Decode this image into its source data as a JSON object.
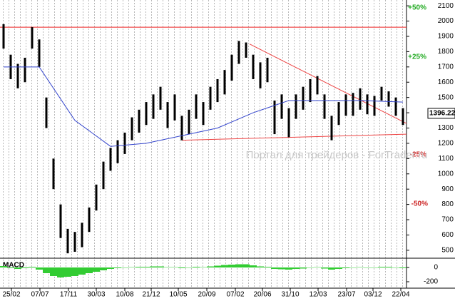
{
  "chart_data": {
    "type": "ohlc",
    "x": [
      0,
      1,
      2,
      3,
      4,
      5,
      6,
      7,
      8,
      9,
      10,
      11,
      12,
      13,
      14,
      15,
      16,
      17,
      18,
      19,
      20,
      21,
      22,
      23,
      24,
      25,
      26,
      27,
      28,
      29,
      30,
      31,
      32,
      33,
      34,
      35,
      36,
      37,
      38,
      39,
      40,
      41,
      42,
      43,
      44,
      45,
      46,
      47,
      48,
      49,
      50,
      51,
      52,
      53,
      54,
      55,
      56
    ],
    "high": [
      1980,
      1780,
      1720,
      1760,
      1960,
      1880,
      1500,
      1100,
      800,
      640,
      620,
      680,
      780,
      930,
      1080,
      1170,
      1220,
      1270,
      1370,
      1420,
      1470,
      1520,
      1570,
      1470,
      1520,
      1380,
      1420,
      1520,
      1470,
      1570,
      1620,
      1680,
      1780,
      1870,
      1860,
      1780,
      1730,
      1760,
      1480,
      1520,
      1430,
      1520,
      1570,
      1620,
      1640,
      1520,
      1380,
      1470,
      1520,
      1530,
      1560,
      1520,
      1510,
      1570,
      1540,
      1500,
      1430
    ],
    "low": [
      1820,
      1620,
      1560,
      1600,
      1820,
      1700,
      1300,
      900,
      580,
      480,
      490,
      520,
      620,
      760,
      900,
      1020,
      1070,
      1130,
      1220,
      1270,
      1320,
      1360,
      1420,
      1300,
      1350,
      1220,
      1260,
      1360,
      1320,
      1420,
      1470,
      1520,
      1610,
      1720,
      1760,
      1620,
      1560,
      1600,
      1260,
      1360,
      1240,
      1360,
      1420,
      1470,
      1520,
      1360,
      1220,
      1320,
      1380,
      1380,
      1420,
      1390,
      1380,
      1480,
      1440,
      1380,
      1320
    ],
    "color": "#000000",
    "ma": {
      "x": [
        0,
        5,
        10,
        15,
        20,
        25,
        30,
        35,
        40,
        45,
        50,
        56
      ],
      "values": [
        1700,
        1700,
        1350,
        1180,
        1200,
        1250,
        1300,
        1400,
        1480,
        1480,
        1480,
        1470
      ],
      "color": "#3344cc"
    },
    "lines": [
      {
        "x": [
          -0.5,
          56.5
        ],
        "values": [
          1960,
          1960
        ],
        "color": "#ee2222"
      },
      {
        "x": [
          34.5,
          56.5
        ],
        "values": [
          1850,
          1330
        ],
        "color": "#ee4444"
      },
      {
        "x": [
          25,
          56.5
        ],
        "values": [
          1220,
          1260
        ],
        "color": "#ee4444"
      }
    ],
    "xlim": [
      -0.5,
      56.5
    ],
    "ylim": [
      448,
      2138
    ],
    "yticks": [
      500,
      600,
      700,
      800,
      900,
      1000,
      1100,
      1200,
      1300,
      1400,
      1500,
      1600,
      1700,
      1800,
      1900,
      2000,
      2100
    ],
    "xticks": [
      {
        "value": 1.1,
        "label": "25/02"
      },
      {
        "value": 5.1,
        "label": "07/07"
      },
      {
        "value": 9.1,
        "label": "17/11"
      },
      {
        "value": 13,
        "label": "30/03"
      },
      {
        "value": 17,
        "label": "10/08"
      },
      {
        "value": 20.7,
        "label": "21/12"
      },
      {
        "value": 24.5,
        "label": "10/05"
      },
      {
        "value": 28.5,
        "label": "20/09"
      },
      {
        "value": 32.5,
        "label": "07/02"
      },
      {
        "value": 36.3,
        "label": "20/06"
      },
      {
        "value": 40.2,
        "label": "31/10"
      },
      {
        "value": 44.1,
        "label": "12/03"
      },
      {
        "value": 48.1,
        "label": "23/07"
      },
      {
        "value": 51.8,
        "label": "03/12"
      },
      {
        "value": 55.7,
        "label": "22/04"
      }
    ],
    "last_price": 1396.22,
    "annotations": [
      "+50%",
      "+25%",
      "-25%",
      "-50%"
    ],
    "watermark": "Портал для трейдеров - ForTrader.ru",
    "macd": {
      "label": "MACD",
      "color": "#33cc33",
      "values": [
        20,
        -10,
        -20,
        -10,
        10,
        -30,
        -80,
        -120,
        -140,
        -130,
        -120,
        -100,
        -80,
        -60,
        -40,
        -20,
        -10,
        -5,
        5,
        10,
        10,
        15,
        15,
        5,
        5,
        -10,
        -5,
        10,
        5,
        15,
        25,
        35,
        40,
        45,
        45,
        30,
        15,
        10,
        -20,
        -25,
        -30,
        -20,
        -15,
        -5,
        5,
        -15,
        -30,
        -20,
        -10,
        -5,
        5,
        0,
        -5,
        10,
        10,
        0,
        -10
      ],
      "ylim": [
        -290,
        110
      ],
      "yticks": [
        0,
        -200
      ]
    }
  }
}
